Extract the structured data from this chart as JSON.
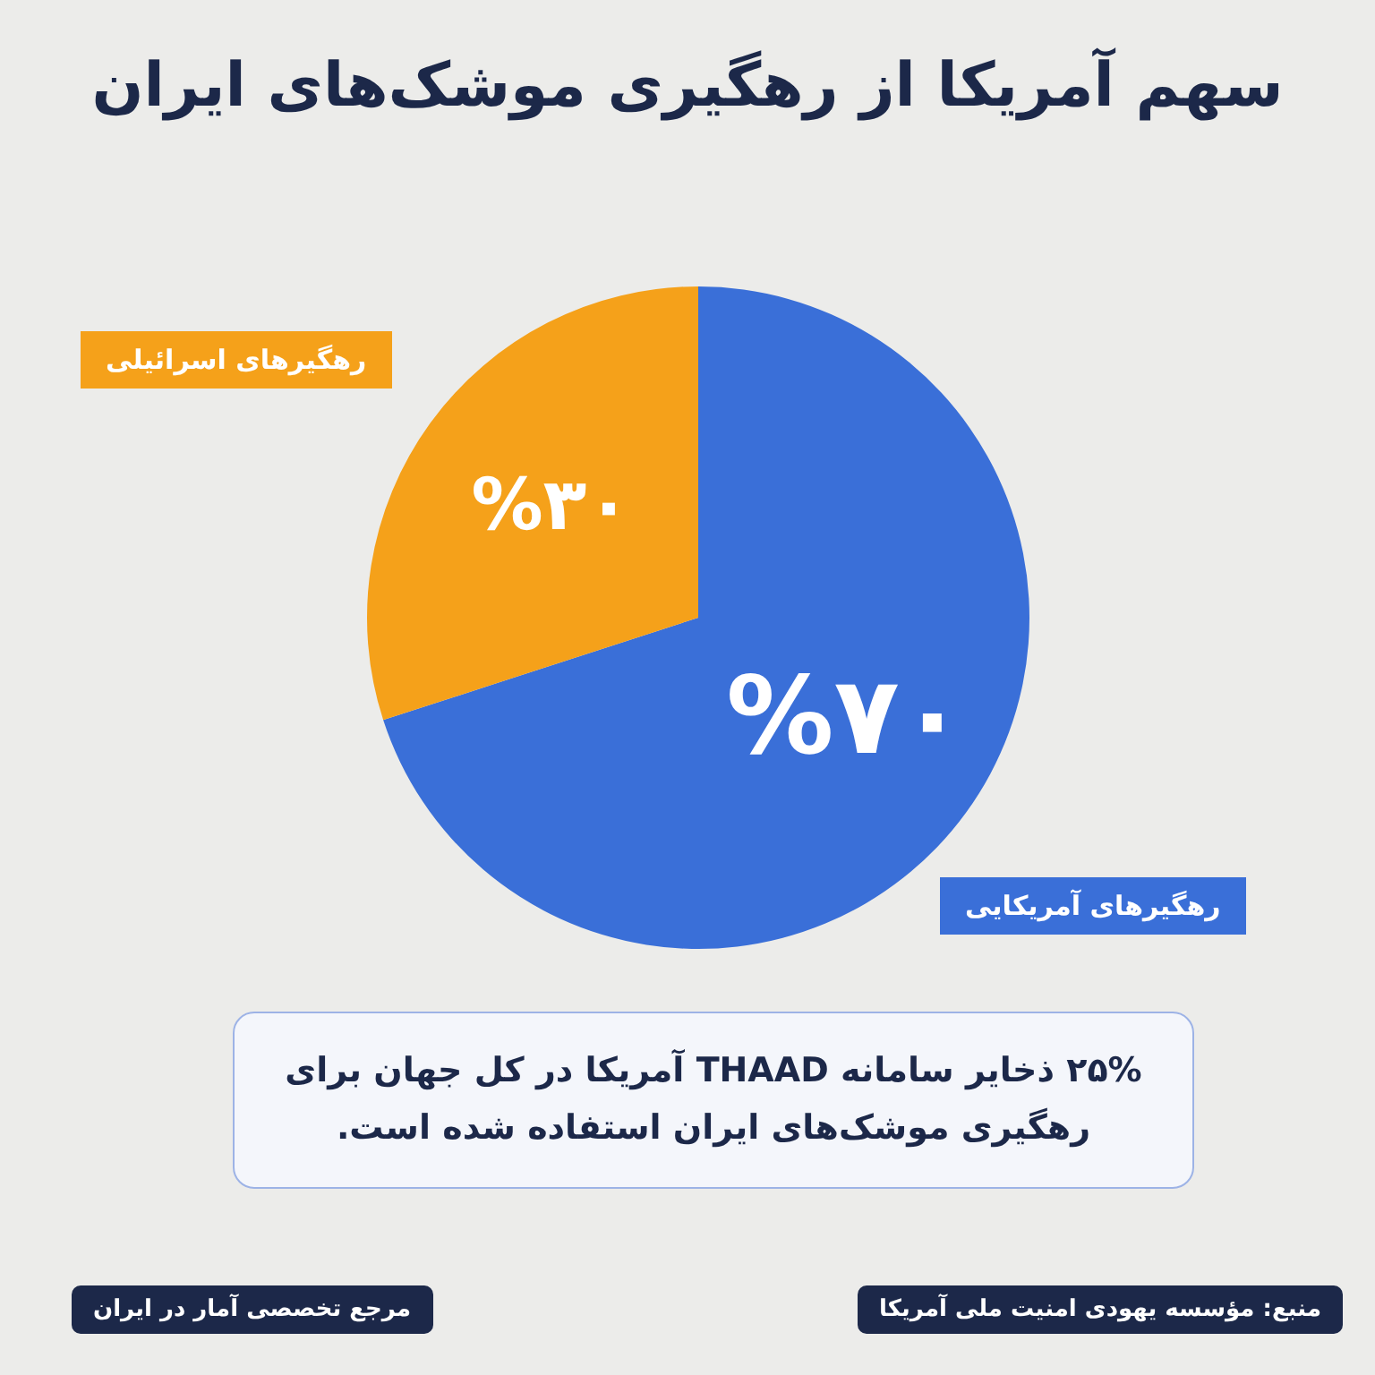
{
  "chart_data": {
    "type": "pie",
    "title": "سهم آمریکا از رهگیری موشک‌های ایران",
    "categories": [
      "رهگیرهای آمریکایی",
      "رهگیرهای اسرائیلی"
    ],
    "values": [
      70,
      30
    ],
    "colors": [
      "#3a6fd8",
      "#f5a11a"
    ],
    "value_labels": [
      "%۷۰",
      "%۳۰"
    ],
    "annotations": [
      "۲۵% ذخایر سامانه THAAD آمریکا در کل جهان برای رهگیری موشک‌های ایران استفاده شده است.",
      "منبع: مؤسسه یهودی امنیت ملی آمریکا",
      "مرجع تخصصی آمار در ایران"
    ]
  }
}
